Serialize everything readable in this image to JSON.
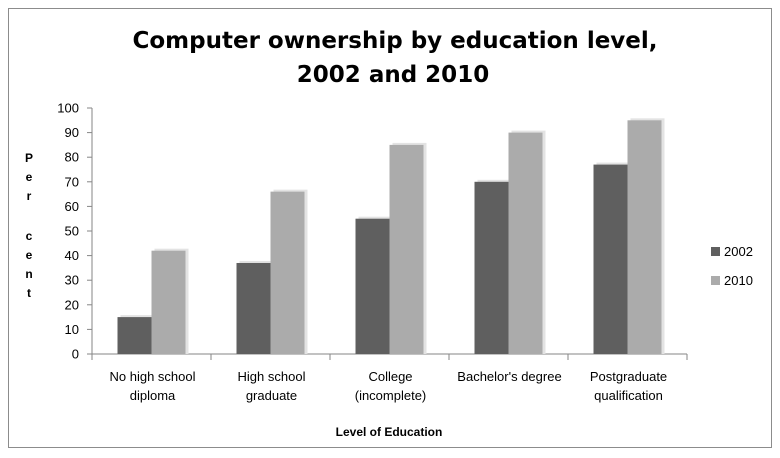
{
  "chart_data": {
    "type": "bar",
    "title_lines": [
      "Computer ownership by education level,",
      "2002 and 2010"
    ],
    "xlabel": "Level of Education",
    "ylabel": "Per cent",
    "ylim": [
      0,
      100
    ],
    "yticks": [
      0,
      10,
      20,
      30,
      40,
      50,
      60,
      70,
      80,
      90,
      100
    ],
    "categories": [
      [
        "No high school",
        "diploma"
      ],
      [
        "High school",
        "graduate"
      ],
      [
        "College",
        "(incomplete)"
      ],
      [
        "Bachelor's degree"
      ],
      [
        "Postgraduate",
        "qualification"
      ]
    ],
    "series": [
      {
        "name": "2002",
        "color": "#5f5f5f",
        "values": [
          15,
          37,
          55,
          70,
          77
        ]
      },
      {
        "name": "2010",
        "color": "#ababab",
        "values": [
          42,
          66,
          85,
          90,
          95
        ]
      }
    ],
    "legend_position": "right",
    "grid": false
  }
}
